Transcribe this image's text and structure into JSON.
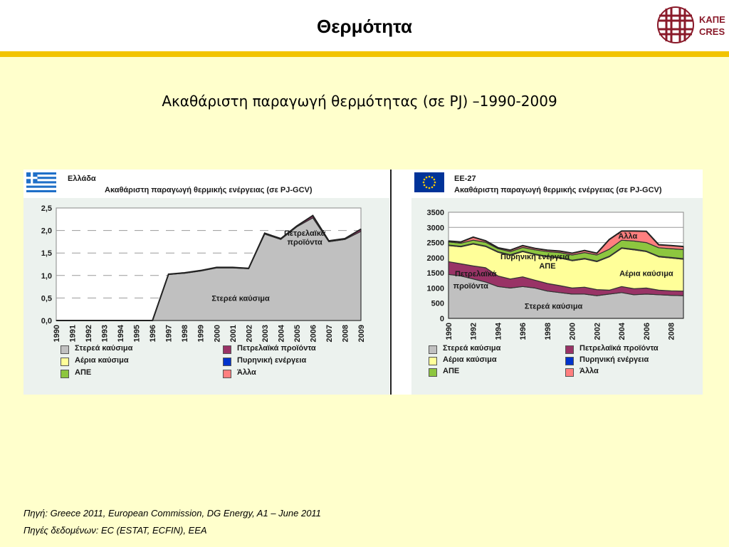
{
  "header": {
    "title": "Θερμότητα",
    "logo_line1": "ΚΑΠΕ",
    "logo_line2": "CRES"
  },
  "subtitle": "Ακαθάριστη παραγωγή θερμότητας (σε PJ) –1990-2009",
  "colors": {
    "solid": "#c0c0c0",
    "petroleum": "#993366",
    "gas": "#ffff99",
    "renewables": "#8dc63f",
    "nuclear": "#0033cc",
    "other": "#ff7f7f",
    "plot_bg": "#ecf2ee",
    "accent": "#f2c400"
  },
  "legend": [
    {
      "key": "solid",
      "label": "Στερεά καύσιμα"
    },
    {
      "key": "petroleum",
      "label": "Πετρελαϊκά προϊόντα"
    },
    {
      "key": "gas",
      "label": "Αέρια καύσιμα"
    },
    {
      "key": "nuclear",
      "label": "Πυρηνική ενέργεια"
    },
    {
      "key": "renewables",
      "label": "ΑΠΕ"
    },
    {
      "key": "other",
      "label": "Άλλα"
    }
  ],
  "chart_data": [
    {
      "type": "area",
      "region": "Ελλάδα",
      "title": "Ακαθάριστη παραγωγή θερμικής ενέργειας (σε PJ-GCV)",
      "x": [
        "1990",
        "1991",
        "1992",
        "1993",
        "1994",
        "1995",
        "1996",
        "1997",
        "1998",
        "1999",
        "2000",
        "2001",
        "2002",
        "2003",
        "2004",
        "2005",
        "2006",
        "2007",
        "2008",
        "2009"
      ],
      "ylim": [
        0,
        2.5
      ],
      "yticks": [
        "0,0",
        "0,5",
        "1,0",
        "1,5",
        "2,0",
        "2,5"
      ],
      "series": [
        {
          "key": "solid",
          "name": "Στερεά καύσιμα",
          "values": [
            0,
            0,
            0,
            0,
            0,
            0,
            0,
            1.02,
            1.05,
            1.1,
            1.17,
            1.17,
            1.15,
            1.92,
            1.8,
            2.08,
            2.28,
            1.75,
            1.8,
            1.98
          ]
        },
        {
          "key": "petroleum",
          "name": "Πετρελαϊκά προϊόντα",
          "values": [
            0,
            0,
            0,
            0,
            0,
            0,
            0,
            0.01,
            0.01,
            0.01,
            0.01,
            0.01,
            0.01,
            0.02,
            0.02,
            0.02,
            0.05,
            0.02,
            0.02,
            0.05
          ]
        }
      ],
      "annotations": [
        {
          "text": "Πετρελαϊκά",
          "x": 2005.5,
          "y": 1.95
        },
        {
          "text": "προϊόντα",
          "x": 2005.5,
          "y": 1.75
        },
        {
          "text": "Στερεά καύσιμα",
          "x": 2001.5,
          "y": 0.5
        }
      ],
      "grid": true,
      "legend_position": "bottom"
    },
    {
      "type": "area",
      "region": "ΕΕ-27",
      "title": "Ακαθάριστη παραγωγή θερμικής ενέργειας (σε PJ-GCV)",
      "x": [
        "1990",
        "1991",
        "1992",
        "1993",
        "1994",
        "1995",
        "1996",
        "1997",
        "1998",
        "1999",
        "2000",
        "2001",
        "2002",
        "2003",
        "2004",
        "2005",
        "2006",
        "2007",
        "2008",
        "2009"
      ],
      "xticks": [
        "1990",
        "1992",
        "1994",
        "1996",
        "1998",
        "2000",
        "2002",
        "2004",
        "2006",
        "2008"
      ],
      "ylim": [
        0,
        3500
      ],
      "yticks": [
        "0",
        "500",
        "1000",
        "1500",
        "2000",
        "2500",
        "3000",
        "3500"
      ],
      "series": [
        {
          "key": "solid",
          "name": "Στερεά καύσιμα",
          "values": [
            1450,
            1400,
            1300,
            1200,
            1050,
            1000,
            1050,
            1000,
            900,
            850,
            800,
            800,
            750,
            800,
            850,
            780,
            800,
            780,
            760,
            750
          ]
        },
        {
          "key": "petroleum",
          "name": "Πετρελαϊκά προϊόντα",
          "values": [
            420,
            400,
            430,
            470,
            350,
            300,
            320,
            260,
            250,
            230,
            200,
            230,
            200,
            130,
            200,
            200,
            200,
            150,
            150,
            150
          ]
        },
        {
          "key": "gas",
          "name": "Αέρια καύσιμα",
          "values": [
            530,
            560,
            720,
            700,
            780,
            780,
            830,
            840,
            880,
            910,
            900,
            930,
            920,
            1100,
            1260,
            1280,
            1200,
            1100,
            1080,
            1050
          ]
        },
        {
          "key": "nuclear",
          "name": "Πυρηνική ενέργεια",
          "values": [
            20,
            20,
            20,
            20,
            20,
            20,
            20,
            20,
            20,
            20,
            20,
            20,
            20,
            20,
            20,
            20,
            20,
            20,
            20,
            20
          ]
        },
        {
          "key": "renewables",
          "name": "ΑΠΕ",
          "values": [
            100,
            100,
            110,
            120,
            100,
            100,
            120,
            140,
            150,
            160,
            170,
            190,
            200,
            230,
            250,
            270,
            280,
            280,
            290,
            300
          ]
        },
        {
          "key": "other",
          "name": "Άλλα",
          "values": [
            30,
            40,
            100,
            50,
            30,
            50,
            60,
            50,
            50,
            50,
            60,
            70,
            60,
            320,
            300,
            330,
            370,
            100,
            100,
            100
          ]
        }
      ],
      "annotations": [
        {
          "text": "Άλλα",
          "x": 2004.5,
          "y": 2720
        },
        {
          "text": "Πυρηνική ενέργεια",
          "x": 1997,
          "y": 2040
        },
        {
          "text": "ΑΠΕ",
          "x": 1998,
          "y": 1740
        },
        {
          "text": "Πετρελαϊκά",
          "x": 1992.2,
          "y": 1480
        },
        {
          "text": "προϊόντα",
          "x": 1991.8,
          "y": 1080
        },
        {
          "text": "Αέρια καύσιμα",
          "x": 2006,
          "y": 1490
        },
        {
          "text": "Στερεά καύσιμα",
          "x": 1998.5,
          "y": 410
        }
      ],
      "grid": true,
      "legend_position": "bottom"
    }
  ],
  "footer": {
    "source1": "Πηγή: Greece 2011, European Commission, DG Energy, A1 – June 2011",
    "source2": "Πηγές δεδομένων: EC (ESTAT, ECFIN), EEA"
  }
}
